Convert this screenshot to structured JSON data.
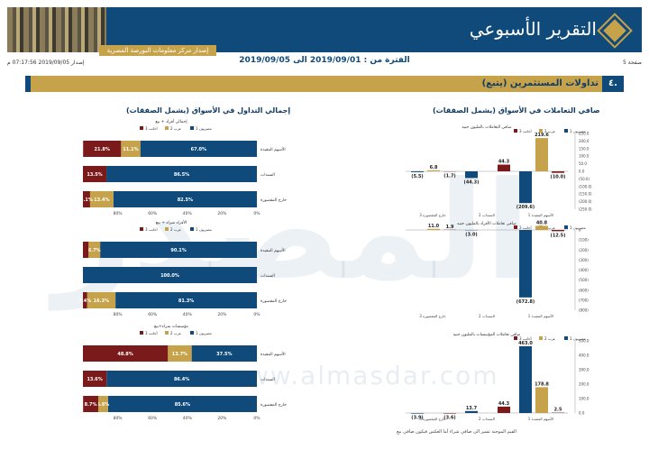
{
  "header": {
    "title": "التقرير الأسبوعي",
    "subtitle": "إصدار مركز معلومات البورصة المصرية",
    "icon": "diamond-icon",
    "colors": {
      "navy": "#0f4a7a",
      "gold": "#c6a24a",
      "red": "#7a1a1a"
    }
  },
  "meta": {
    "issue": "إصدار 2019/09/05 07:17:56 م",
    "period_label": "الفترة من : 2019/09/01 الى 2019/09/05",
    "page": "صفحة 5"
  },
  "section": {
    "number": "٤.",
    "title": "تداولات المستثمرين (يتبع)"
  },
  "left_column": {
    "title": "إجمالي التداول في الأسواق (يشمل الصفقات)"
  },
  "right_column": {
    "title": "صافي التعاملات في الأسواق (يشمل الصفقات)"
  },
  "legend": {
    "egyptian": "مصريون 1",
    "arab": "عرب 2",
    "foreign": "أجانب 3"
  },
  "left_charts": [
    {
      "title": "إجمالي أفراد + بيع",
      "rows": [
        {
          "label": "الأسهم المقيدة",
          "values": [
            67.0,
            11.1,
            21.8
          ],
          "texts": [
            "67.0%",
            "11.1%",
            "21.8%"
          ]
        },
        {
          "label": "السندات",
          "values": [
            86.5,
            0.0,
            13.5
          ],
          "texts": [
            "86.5%",
            "",
            "13.5%"
          ]
        },
        {
          "label": "خارج المقصورة",
          "values": [
            82.5,
            13.4,
            4.1
          ],
          "texts": [
            "82.5%",
            "13.4%",
            "4.1%"
          ]
        }
      ]
    },
    {
      "title": "الأفراد شراء + بيع",
      "rows": [
        {
          "label": "الأسهم المقيدة",
          "values": [
            90.1,
            6.7,
            3.2
          ],
          "texts": [
            "90.1%",
            "6.7%",
            ""
          ]
        },
        {
          "label": "السندات",
          "values": [
            100.0,
            0.0,
            0.0
          ],
          "texts": [
            "100.0%",
            "",
            ""
          ]
        },
        {
          "label": "خارج المقصورة",
          "values": [
            81.3,
            16.3,
            2.4
          ],
          "texts": [
            "81.3%",
            "16.3%",
            "2.4%"
          ]
        }
      ]
    },
    {
      "title": "مؤسسات شراء+بيع",
      "rows": [
        {
          "label": "الأسهم المقيدة",
          "values": [
            37.5,
            13.7,
            48.8
          ],
          "texts": [
            "37.5%",
            "13.7%",
            "48.8%"
          ]
        },
        {
          "label": "السندات",
          "values": [
            86.4,
            0.0,
            13.6
          ],
          "texts": [
            "86.4%",
            "",
            "13.6%"
          ]
        },
        {
          "label": "خارج المقصورة",
          "values": [
            85.6,
            5.6,
            8.7
          ],
          "texts": [
            "85.6%",
            "5.6%",
            "8.7%"
          ]
        }
      ]
    }
  ],
  "axis_ticks_pct": [
    "0%",
    "20%",
    "40%",
    "60%",
    "80%"
  ],
  "right_charts": [
    {
      "title": "صافي التعاملات بالمليون جنيه",
      "ylim": [
        -250,
        250
      ],
      "ticks": [
        "250.0",
        "200.0",
        "150.0",
        "100.0",
        "50.0",
        "0.0",
        "(50.0)",
        "(100.0)",
        "(150.0)",
        "(200.0)",
        "(250.0)"
      ],
      "groups": [
        {
          "label": "الأسهم المقيدة 1",
          "values": [
            -209.6,
            219.6,
            -10.0
          ],
          "texts": [
            "(209.6)",
            "219.6",
            "(10.0)"
          ]
        },
        {
          "label": "السندات 2",
          "values": [
            -44.3,
            0,
            44.3
          ],
          "texts": [
            "(44.3)",
            "",
            "44.3"
          ]
        },
        {
          "label": "خارج المقصورة 3",
          "values": [
            -5.5,
            6.8,
            -1.7
          ],
          "texts": [
            "(5.5)",
            "6.8",
            "(1.7)"
          ]
        }
      ]
    },
    {
      "title": "صافي تعاملات الأفراد بالمليون جنيه",
      "ylim": [
        -800,
        0
      ],
      "ticks": [
        "0",
        "(100)",
        "(200)",
        "(300)",
        "(400)",
        "(500)",
        "(600)",
        "(700)",
        "(800)"
      ],
      "groups": [
        {
          "label": "الأسهم المقيدة 1",
          "values": [
            -672.8,
            40.8,
            -12.5
          ],
          "texts": [
            "(672.8)",
            "40.8",
            "(12.5)"
          ]
        },
        {
          "label": "السندات 2",
          "values": [
            -3.0,
            0,
            0
          ],
          "texts": [
            "(3.0)",
            "",
            ""
          ]
        },
        {
          "label": "خارج المقصورة 3",
          "values": [
            0,
            11.0,
            1.9
          ],
          "texts": [
            "",
            "11.0",
            "1.9"
          ]
        }
      ]
    },
    {
      "title": "صافي تعاملات المؤسسات بالمليون جنيه",
      "ylim": [
        0,
        500
      ],
      "ticks": [
        "500.0",
        "400.0",
        "300.0",
        "200.0",
        "100.0",
        "0.0"
      ],
      "groups": [
        {
          "label": "الأسهم المقيدة 1",
          "values": [
            463.0,
            178.8,
            2.5
          ],
          "texts": [
            "463.0",
            "178.8",
            "2.5"
          ]
        },
        {
          "label": "السندات 2",
          "values": [
            13.7,
            0,
            44.3
          ],
          "texts": [
            "13.7",
            "",
            "44.3"
          ]
        },
        {
          "label": "خارج المقصورة 3",
          "values": [
            -3.9,
            0,
            -3.6
          ],
          "texts": [
            "(3.9)",
            "",
            "(3.6)"
          ]
        }
      ]
    }
  ],
  "footer_note": "القيم الموجبة تشير الى صافي شراء أما العكس فيكون صافي بيع",
  "watermark": {
    "url": "www.almasdar.com",
    "logo": "المصدر"
  }
}
